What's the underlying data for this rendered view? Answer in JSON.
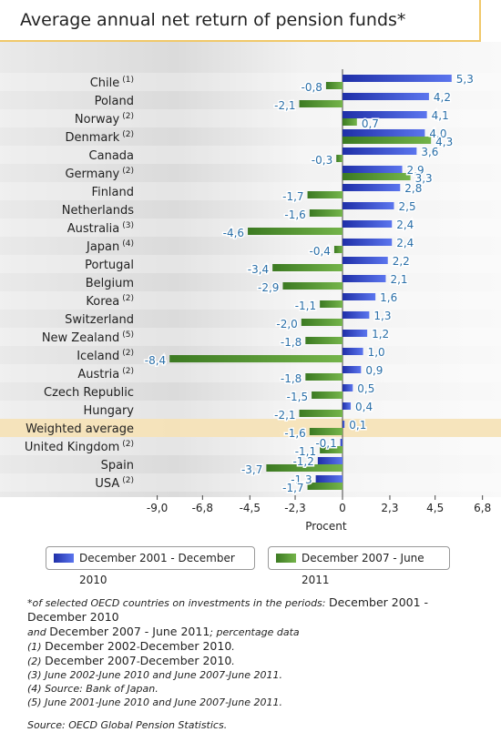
{
  "title": "Average annual net return of pension funds*",
  "chart_data": {
    "type": "bar",
    "orientation": "horizontal",
    "categories": [
      "Chile",
      "Poland",
      "Norway",
      "Denmark",
      "Canada",
      "Germany",
      "Finland",
      "Netherlands",
      "Australia",
      "Japan",
      "Portugal",
      "Belgium",
      "Korea",
      "Switzerland",
      "New Zealand",
      "Iceland",
      "Austria",
      "Czech Republic",
      "Hungary",
      "Weighted average",
      "United Kingdom",
      "Spain",
      "USA"
    ],
    "category_footnotes": [
      "(1)",
      "",
      "(2)",
      "(2)",
      "",
      "(2)",
      "",
      "",
      "(3)",
      "(4)",
      "",
      "",
      "(2)",
      "",
      "(5)",
      "(2)",
      "(2)",
      "",
      "",
      "",
      "(2)",
      "",
      "(2)"
    ],
    "highlighted_category": "Weighted average",
    "series": [
      {
        "name": "December 2001 - December 2010",
        "values": [
          5.3,
          4.2,
          4.1,
          4.0,
          3.6,
          2.9,
          2.8,
          2.5,
          2.4,
          2.4,
          2.2,
          2.1,
          1.6,
          1.3,
          1.2,
          1.0,
          0.9,
          0.5,
          0.4,
          0.1,
          -0.1,
          -1.2,
          -1.3
        ]
      },
      {
        "name": "December 2007 - June 2011",
        "values": [
          -0.8,
          -2.1,
          0.7,
          4.3,
          -0.3,
          3.3,
          -1.7,
          -1.6,
          -4.6,
          -0.4,
          -3.4,
          -2.9,
          -1.1,
          -2.0,
          -1.8,
          -8.4,
          -1.8,
          -1.5,
          -2.1,
          -1.6,
          -1.1,
          -3.7,
          -1.7
        ]
      }
    ],
    "value_labels": [
      [
        "5,3",
        "4,2",
        "4,1",
        "4,0",
        "3,6",
        "2,9",
        "2,8",
        "2,5",
        "2,4",
        "2,4",
        "2,2",
        "2,1",
        "1,6",
        "1,3",
        "1,2",
        "1,0",
        "0,9",
        "0,5",
        "0,4",
        "0,1",
        "-0,1",
        "-1,2",
        "-1,3"
      ],
      [
        "-0,8",
        "-2,1",
        "0,7",
        "4,3",
        "-0,3",
        "3,3",
        "-1,7",
        "-1,6",
        "-4,6",
        "-0,4",
        "-3,4",
        "-2,9",
        "-1,1",
        "-2,0",
        "-1,8",
        "-8,4",
        "-1,8",
        "-1,5",
        "-2,1",
        "-1,6",
        "-1,1",
        "-3,7",
        "-1,7"
      ]
    ],
    "x_ticks": [
      -9.0,
      -6.8,
      -4.5,
      -2.3,
      0,
      2.3,
      4.5,
      6.8
    ],
    "x_tick_labels": [
      "-9,0",
      "-6,8",
      "-4,5",
      "-2,3",
      "0",
      "2,3",
      "4,5",
      "6,8"
    ],
    "xlabel": "Procent",
    "xlim": [
      -9.0,
      7.2
    ],
    "colors": {
      "series1": "#3f55d6",
      "series2": "#5a9a36",
      "value_label": "#2a6fa8",
      "highlight": "#f6e3b8",
      "title_border": "#f0c86a"
    },
    "legend_position": "bottom"
  },
  "notes": {
    "main_a": "*of selected OECD countries on investments in the periods: ",
    "main_b": "December  2001 - December 2010",
    "main_c": " and ",
    "main_d": "December 2007 - June 2011",
    "main_e": "; percentage data",
    "n1_a": "(1) ",
    "n1_b": "December 2002",
    "n1_c": "-",
    "n1_d": "December 2010",
    "n1_e": ".",
    "n2_a": "(2) ",
    "n2_b": "December 2007",
    "n2_c": "-",
    "n2_d": "December 2010",
    "n2_e": ".",
    "n3": "(3) June 2002-June 2010 and June 2007-June 2011.",
    "n4": "(4) Source: Bank of Japan.",
    "n5": "(5) June 2001-June 2010 and June 2007-June 2011.",
    "source": "Source: OECD Global Pension Statistics."
  }
}
